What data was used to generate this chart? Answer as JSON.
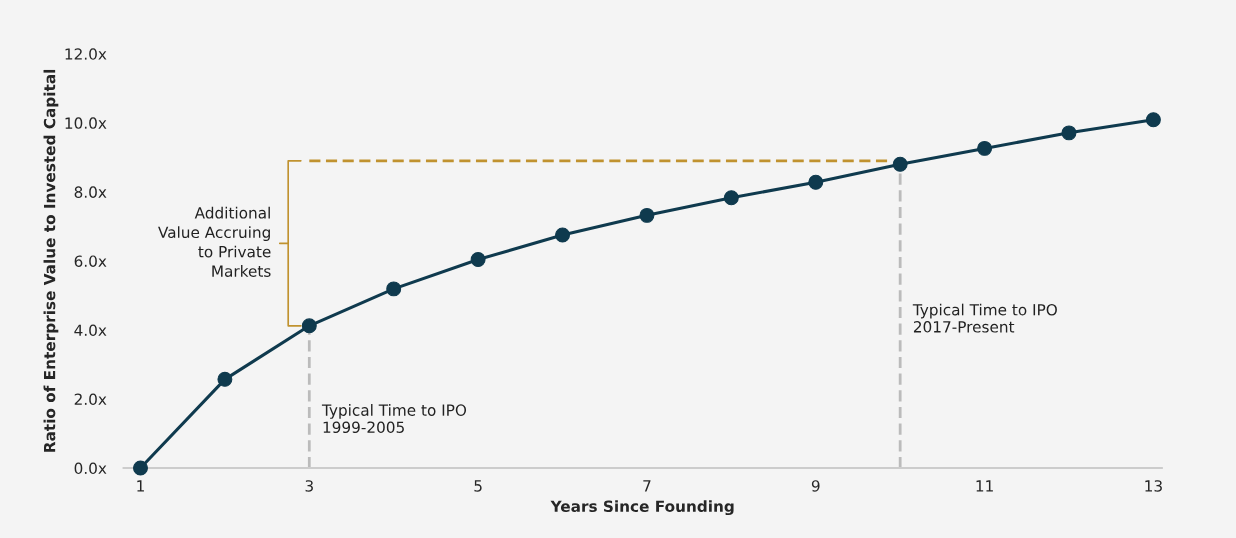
{
  "chart_data": {
    "type": "line",
    "xlabel": "Years Since Founding",
    "ylabel": "Ratio of Enterprise Value to Invested Capital",
    "xlim": [
      0.8,
      13.1
    ],
    "xticks": [
      1,
      3,
      5,
      7,
      9,
      11,
      13
    ],
    "ylim": [
      0,
      12
    ],
    "yticks": [
      {
        "value": 0,
        "label": "0.0x"
      },
      {
        "value": 2,
        "label": "2.0x"
      },
      {
        "value": 4,
        "label": "4.0x"
      },
      {
        "value": 6,
        "label": "6.0x"
      },
      {
        "value": 8,
        "label": "8.0x"
      },
      {
        "value": 10,
        "label": "10.0x"
      },
      {
        "value": 12,
        "label": "12.0x"
      }
    ],
    "grid": false,
    "legend": false,
    "series": [
      {
        "color": "#0f3a4e",
        "marker": "circle",
        "line_style": "solid",
        "x": [
          1,
          2,
          3,
          4,
          5,
          6,
          7,
          8,
          9,
          10,
          11,
          12,
          13
        ],
        "values": [
          0,
          2.57,
          4.12,
          5.19,
          6.04,
          6.75,
          7.32,
          7.83,
          8.28,
          8.8,
          9.26,
          9.71,
          10.09
        ]
      },
      {
        "color": "#c0922f",
        "marker": "none",
        "line_style": "dashed",
        "x": [
          3,
          9.9
        ],
        "values": [
          8.9,
          8.9
        ]
      }
    ],
    "ref_lines": [
      {
        "axis": "x",
        "value": 3,
        "label": "Typical Time to IPO\n1999-2005",
        "color": "#bbbbbb",
        "line_style": "dashed"
      },
      {
        "axis": "x",
        "value": 10,
        "label": "Typical Time to IPO\n2017-Present",
        "color": "#bbbbbb",
        "line_style": "dashed"
      }
    ],
    "annotations": [
      "Additional\nValue Accruing\nto Private\nMarkets"
    ]
  }
}
